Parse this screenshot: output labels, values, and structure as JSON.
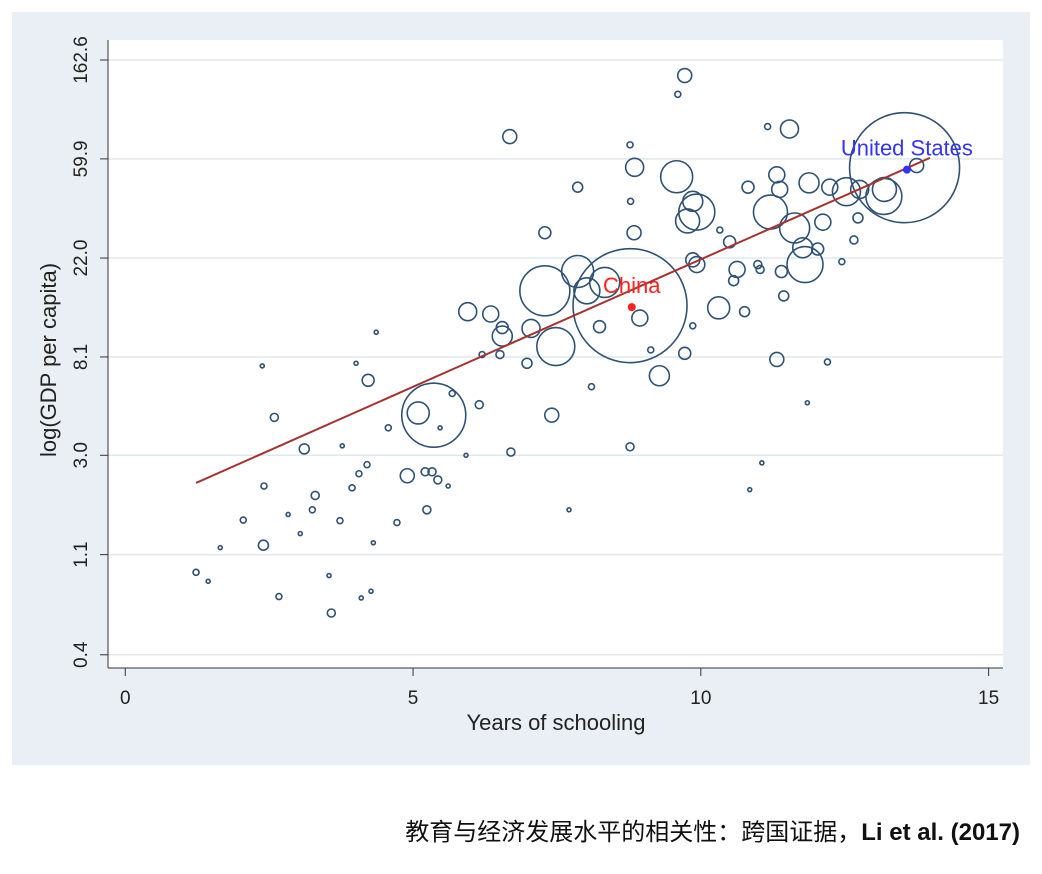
{
  "chart_data": {
    "type": "scatter",
    "xlabel": "Years of schooling",
    "ylabel": "log(GDP per capita)",
    "xlim": [
      -0.3,
      15.25
    ],
    "ylim": [
      0.35,
      199
    ],
    "log_y": true,
    "grid": true,
    "xticks": [
      0,
      5,
      10,
      15
    ],
    "yticks": [
      0.4,
      1.1,
      {
        "value": 3,
        "label": "3.0"
      },
      8.1,
      {
        "value": 22,
        "label": "22.0"
      },
      59.9,
      162.6
    ],
    "series": [
      {
        "color": "#2e5275",
        "x": [
          1.23,
          1.44,
          1.65,
          2.05,
          2.4,
          2.41,
          2.38,
          2.59,
          2.67,
          2.83,
          3.04,
          3.11,
          3.25,
          3.3,
          3.58,
          3.54,
          3.73,
          3.77,
          3.94,
          4.01,
          4.06,
          4.1,
          4.2,
          4.22,
          4.27,
          4.31,
          4.36,
          4.57,
          4.72,
          4.9,
          5.09,
          5.36,
          5.21,
          5.33,
          5.43,
          5.61,
          5.24,
          5.47,
          5.68,
          5.92,
          5.95,
          6.15,
          6.35,
          6.2,
          6.51,
          6.55,
          6.55,
          6.68,
          6.7,
          6.98,
          7.05,
          7.29,
          7.29,
          7.48,
          7.41,
          7.71,
          7.86,
          7.86,
          8.02,
          8.1,
          8.24,
          8.33,
          8.77,
          8.77,
          8.85,
          8.78,
          8.84,
          8.94,
          8.77,
          9.13,
          9.28,
          9.6,
          9.72,
          9.58,
          9.86,
          9.93,
          9.77,
          9.86,
          9.93,
          9.72,
          9.86,
          10.31,
          10.33,
          10.5,
          10.63,
          10.57,
          10.82,
          10.76,
          10.85,
          10.99,
          11.03,
          11.06,
          11.16,
          11.21,
          11.32,
          11.37,
          11.32,
          11.4,
          11.44,
          11.54,
          11.63,
          11.77,
          11.88,
          11.81,
          11.85,
          12.03,
          12.12,
          12.24,
          12.2,
          12.53,
          12.66,
          12.73,
          12.76,
          13.18,
          13.19,
          13.54,
          13.75,
          12.45
        ],
        "y": [
          0.92,
          0.84,
          1.18,
          1.56,
          1.21,
          2.2,
          7.4,
          4.4,
          0.72,
          1.65,
          1.36,
          3.2,
          1.73,
          2.0,
          0.61,
          0.89,
          1.55,
          3.3,
          2.16,
          7.6,
          2.49,
          0.71,
          2.73,
          6.4,
          0.76,
          1.24,
          10.4,
          3.96,
          1.52,
          2.44,
          4.6,
          4.5,
          2.54,
          2.54,
          2.34,
          2.2,
          1.73,
          3.96,
          5.6,
          3.0,
          12.8,
          5.0,
          12.5,
          8.3,
          8.3,
          10.0,
          10.9,
          75,
          3.1,
          7.6,
          10.8,
          28.4,
          15.8,
          9.0,
          4.5,
          1.73,
          45,
          19.2,
          15.8,
          6.0,
          11.0,
          17.2,
          13.6,
          69,
          55,
          39,
          28.4,
          12.0,
          3.27,
          8.7,
          6.7,
          115,
          139,
          50,
          39,
          35,
          32,
          21.6,
          20.6,
          8.4,
          11.1,
          13.3,
          29.2,
          25.9,
          19.6,
          17.5,
          45,
          12.8,
          2.12,
          20.6,
          19.6,
          2.78,
          83,
          35,
          51,
          44,
          7.9,
          19.2,
          15.0,
          81,
          29.8,
          24.4,
          47,
          20.6,
          5.1,
          24.1,
          31.6,
          45,
          7.7,
          43,
          26.4,
          33,
          44,
          41,
          44,
          54.8,
          56,
          21.2
        ],
        "sizes": [
          3,
          2,
          2,
          3,
          5,
          3,
          2,
          4,
          3,
          2,
          2,
          5,
          3,
          4,
          4,
          2,
          3,
          2,
          3,
          2,
          3,
          2,
          3,
          6,
          2,
          2,
          2,
          3,
          3,
          7,
          11,
          32,
          4,
          4,
          4,
          2,
          4,
          2,
          3,
          2,
          9,
          4,
          8,
          3,
          4,
          10,
          6,
          7,
          4,
          5,
          9,
          6,
          25,
          19,
          7,
          2,
          5,
          16,
          13,
          3,
          6,
          15,
          57,
          3,
          9,
          3,
          7,
          8,
          4,
          3,
          10,
          3,
          7,
          16,
          10,
          18,
          12,
          7,
          8,
          6,
          3,
          11,
          3,
          6,
          8,
          5,
          6,
          5,
          2,
          4,
          4,
          2,
          3,
          17,
          8,
          8,
          7,
          6,
          5,
          9,
          15,
          10,
          10,
          18,
          2,
          6,
          8,
          8,
          3,
          14,
          4,
          5,
          9,
          18,
          12,
          55,
          7,
          3
        ]
      }
    ],
    "fit": {
      "color": "#a8322d",
      "x": [
        1.23,
        13.98
      ],
      "y": [
        2.27,
        60.5
      ]
    },
    "highlights": [
      {
        "label": "China",
        "color": "#ff2020",
        "x": 8.8,
        "y": 13.4
      },
      {
        "label": "United States",
        "color": "#3333ff",
        "x": 13.58,
        "y": 53.7
      }
    ]
  },
  "caption": {
    "text": "教育与经济发展水平的相关性：跨国证据，",
    "source": "Li et al. (2017)"
  }
}
